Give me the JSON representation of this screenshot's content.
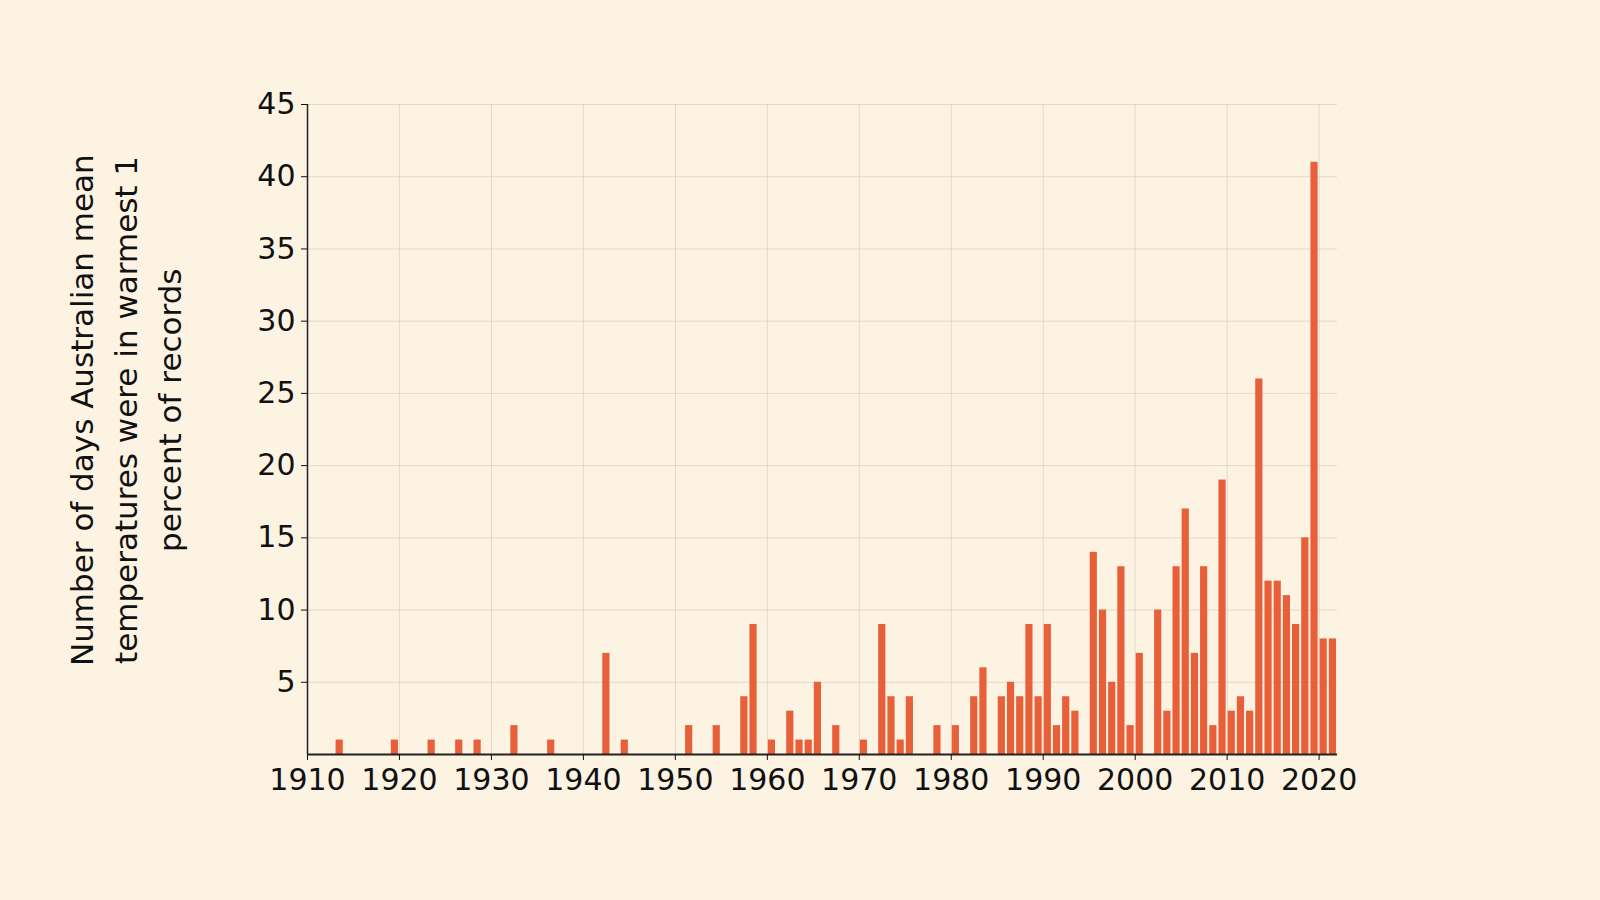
{
  "chart_data": {
    "type": "bar",
    "y_label": "Number of days Australian mean temperatures were in warmest 1 percent of records",
    "x": [
      1913,
      1919,
      1923,
      1926,
      1928,
      1932,
      1936,
      1942,
      1944,
      1951,
      1954,
      1957,
      1958,
      1960,
      1962,
      1963,
      1964,
      1965,
      1967,
      1970,
      1972,
      1973,
      1974,
      1975,
      1978,
      1980,
      1982,
      1983,
      1985,
      1986,
      1987,
      1988,
      1989,
      1990,
      1991,
      1992,
      1993,
      1995,
      1996,
      1997,
      1998,
      1999,
      2000,
      2002,
      2003,
      2004,
      2005,
      2006,
      2007,
      2008,
      2009,
      2010,
      2011,
      2012,
      2013,
      2014,
      2015,
      2016,
      2017,
      2018,
      2019,
      2020,
      2021
    ],
    "values": [
      1,
      1,
      1,
      1,
      1,
      2,
      1,
      7,
      1,
      2,
      2,
      4,
      9,
      1,
      3,
      1,
      1,
      5,
      2,
      1,
      9,
      4,
      1,
      4,
      2,
      2,
      4,
      6,
      4,
      5,
      4,
      9,
      4,
      9,
      2,
      4,
      3,
      14,
      10,
      5,
      13,
      2,
      7,
      10,
      3,
      13,
      17,
      7,
      13,
      2,
      19,
      3,
      4,
      3,
      26,
      12,
      12,
      11,
      9,
      15,
      41,
      8,
      8
    ],
    "color": "#e8603a",
    "xlim": [
      1910,
      2022
    ],
    "xticks": [
      1910,
      1920,
      1930,
      1940,
      1950,
      1960,
      1970,
      1980,
      1990,
      2000,
      2010,
      2020
    ],
    "ylim": [
      0,
      45
    ],
    "yticks": [
      5,
      10,
      15,
      20,
      25,
      30,
      35,
      40,
      45
    ],
    "grid": true
  }
}
